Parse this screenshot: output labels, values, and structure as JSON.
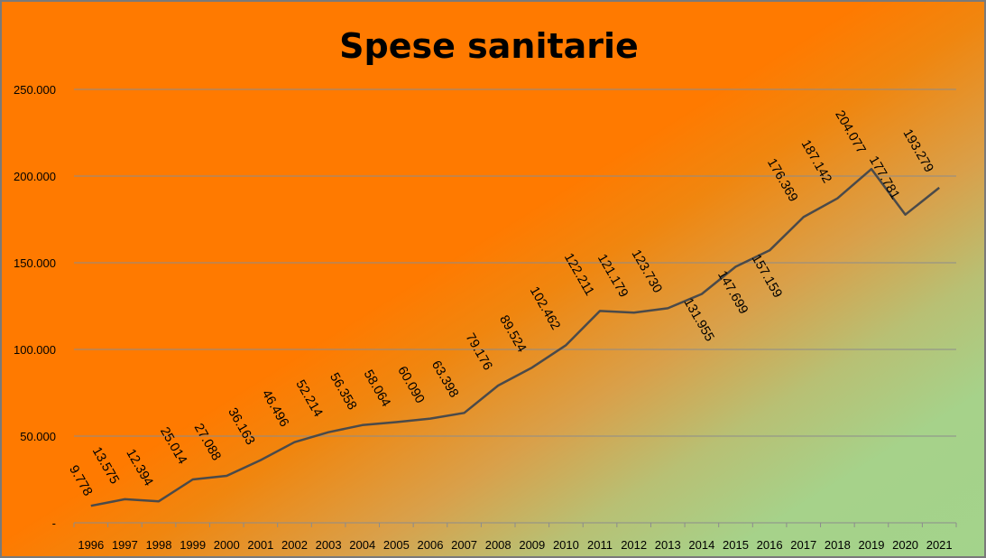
{
  "chart_data": {
    "type": "line",
    "title": "Spese sanitarie",
    "xlabel": "",
    "ylabel": "",
    "ylim": [
      0,
      250000
    ],
    "yticks": [
      0,
      50000,
      100000,
      150000,
      200000,
      250000
    ],
    "ytick_labels": [
      "-",
      "50.000",
      "100.000",
      "150.000",
      "200.000",
      "250.000"
    ],
    "grid": true,
    "legend": "none",
    "line_color": "#4a4a4a",
    "categories": [
      "1996",
      "1997",
      "1998",
      "1999",
      "2000",
      "2001",
      "2002",
      "2003",
      "2004",
      "2005",
      "2006",
      "2007",
      "2008",
      "2009",
      "2010",
      "2011",
      "2012",
      "2013",
      "2014",
      "2015",
      "2016",
      "2017",
      "2018",
      "2019",
      "2020",
      "2021"
    ],
    "values": [
      9778,
      13575,
      12394,
      25014,
      27088,
      36163,
      46496,
      52214,
      56358,
      58064,
      60090,
      63398,
      79176,
      89524,
      102462,
      122211,
      121179,
      123730,
      131955,
      147699,
      157159,
      176369,
      187142,
      204077,
      177781,
      193279
    ],
    "data_labels": [
      "9.778",
      "13.575",
      "12.394",
      "25.014",
      "27.088",
      "36.163",
      "46.496",
      "52.214",
      "56.358",
      "58.064",
      "60.090",
      "63.398",
      "79.176",
      "89.524",
      "102.462",
      "122.211",
      "121.179",
      "123.730",
      "131.955",
      "147.699",
      "157.159",
      "176.369",
      "187.142",
      "204.077",
      "177.781",
      "193.279"
    ]
  }
}
